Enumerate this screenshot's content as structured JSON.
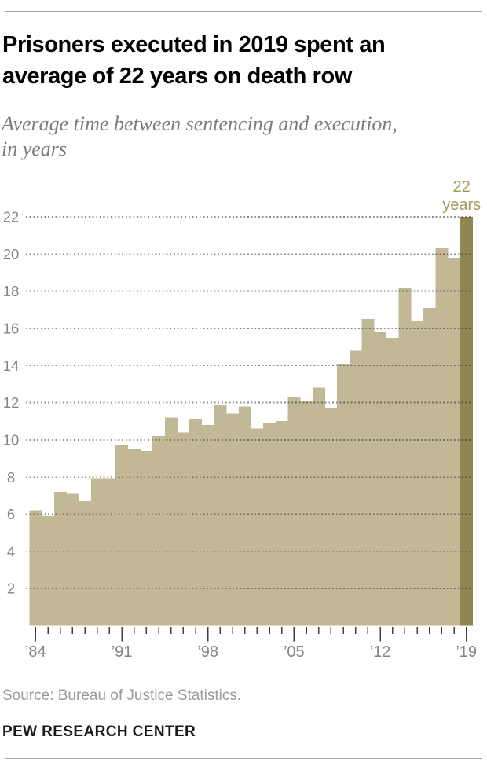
{
  "header": {
    "title_lines": [
      "Prisoners executed in 2019 spent an",
      "average of 22 years on death row"
    ],
    "subtitle_lines": [
      "Average time between sentencing and execution,",
      "in years"
    ]
  },
  "footer": {
    "source": "Source: Bureau of Justice Statistics.",
    "brand": "PEW RESEARCH CENTER"
  },
  "chart_data": {
    "type": "bar",
    "title": "Prisoners executed in 2019 spent an average of 22 years on death row",
    "subtitle": "Average time between sentencing and execution, in years",
    "x": [
      1984,
      1985,
      1986,
      1987,
      1988,
      1989,
      1990,
      1991,
      1992,
      1993,
      1994,
      1995,
      1996,
      1997,
      1998,
      1999,
      2000,
      2001,
      2002,
      2003,
      2004,
      2005,
      2006,
      2007,
      2008,
      2009,
      2010,
      2011,
      2012,
      2013,
      2014,
      2015,
      2016,
      2017,
      2018,
      2019
    ],
    "values": [
      6.2,
      5.9,
      7.2,
      7.1,
      6.7,
      7.9,
      7.9,
      9.7,
      9.5,
      9.4,
      10.2,
      11.2,
      10.4,
      11.1,
      10.8,
      11.9,
      11.4,
      11.8,
      10.6,
      10.9,
      11.0,
      12.3,
      12.1,
      12.8,
      11.7,
      14.1,
      14.8,
      16.5,
      15.8,
      15.5,
      18.2,
      16.4,
      17.1,
      20.3,
      19.8,
      22
    ],
    "highlight_x": 2019,
    "annotation": {
      "lines": [
        "22",
        "years"
      ],
      "at_x": 2019
    },
    "ylim": [
      0,
      22
    ],
    "y_ticks": [
      2,
      4,
      6,
      8,
      10,
      12,
      14,
      16,
      18,
      20,
      22
    ],
    "x_ticks": [
      {
        "x": 1984,
        "label": "’84"
      },
      {
        "x": 1991,
        "label": "’91"
      },
      {
        "x": 1998,
        "label": "’98"
      },
      {
        "x": 2005,
        "label": "’05"
      },
      {
        "x": 2012,
        "label": "’12"
      },
      {
        "x": 2019,
        "label": "’19"
      }
    ],
    "grid": "dotted-horizontal-over-bars",
    "legend": "none",
    "colors": {
      "bar": "#C3B896",
      "highlight_bar": "#90864F",
      "annotation_text": "#A39A5E",
      "grid_dot": "rgba(45,45,45,0.55)",
      "axis_tick": "#3f3f3f",
      "axis_label": "#858585"
    }
  }
}
